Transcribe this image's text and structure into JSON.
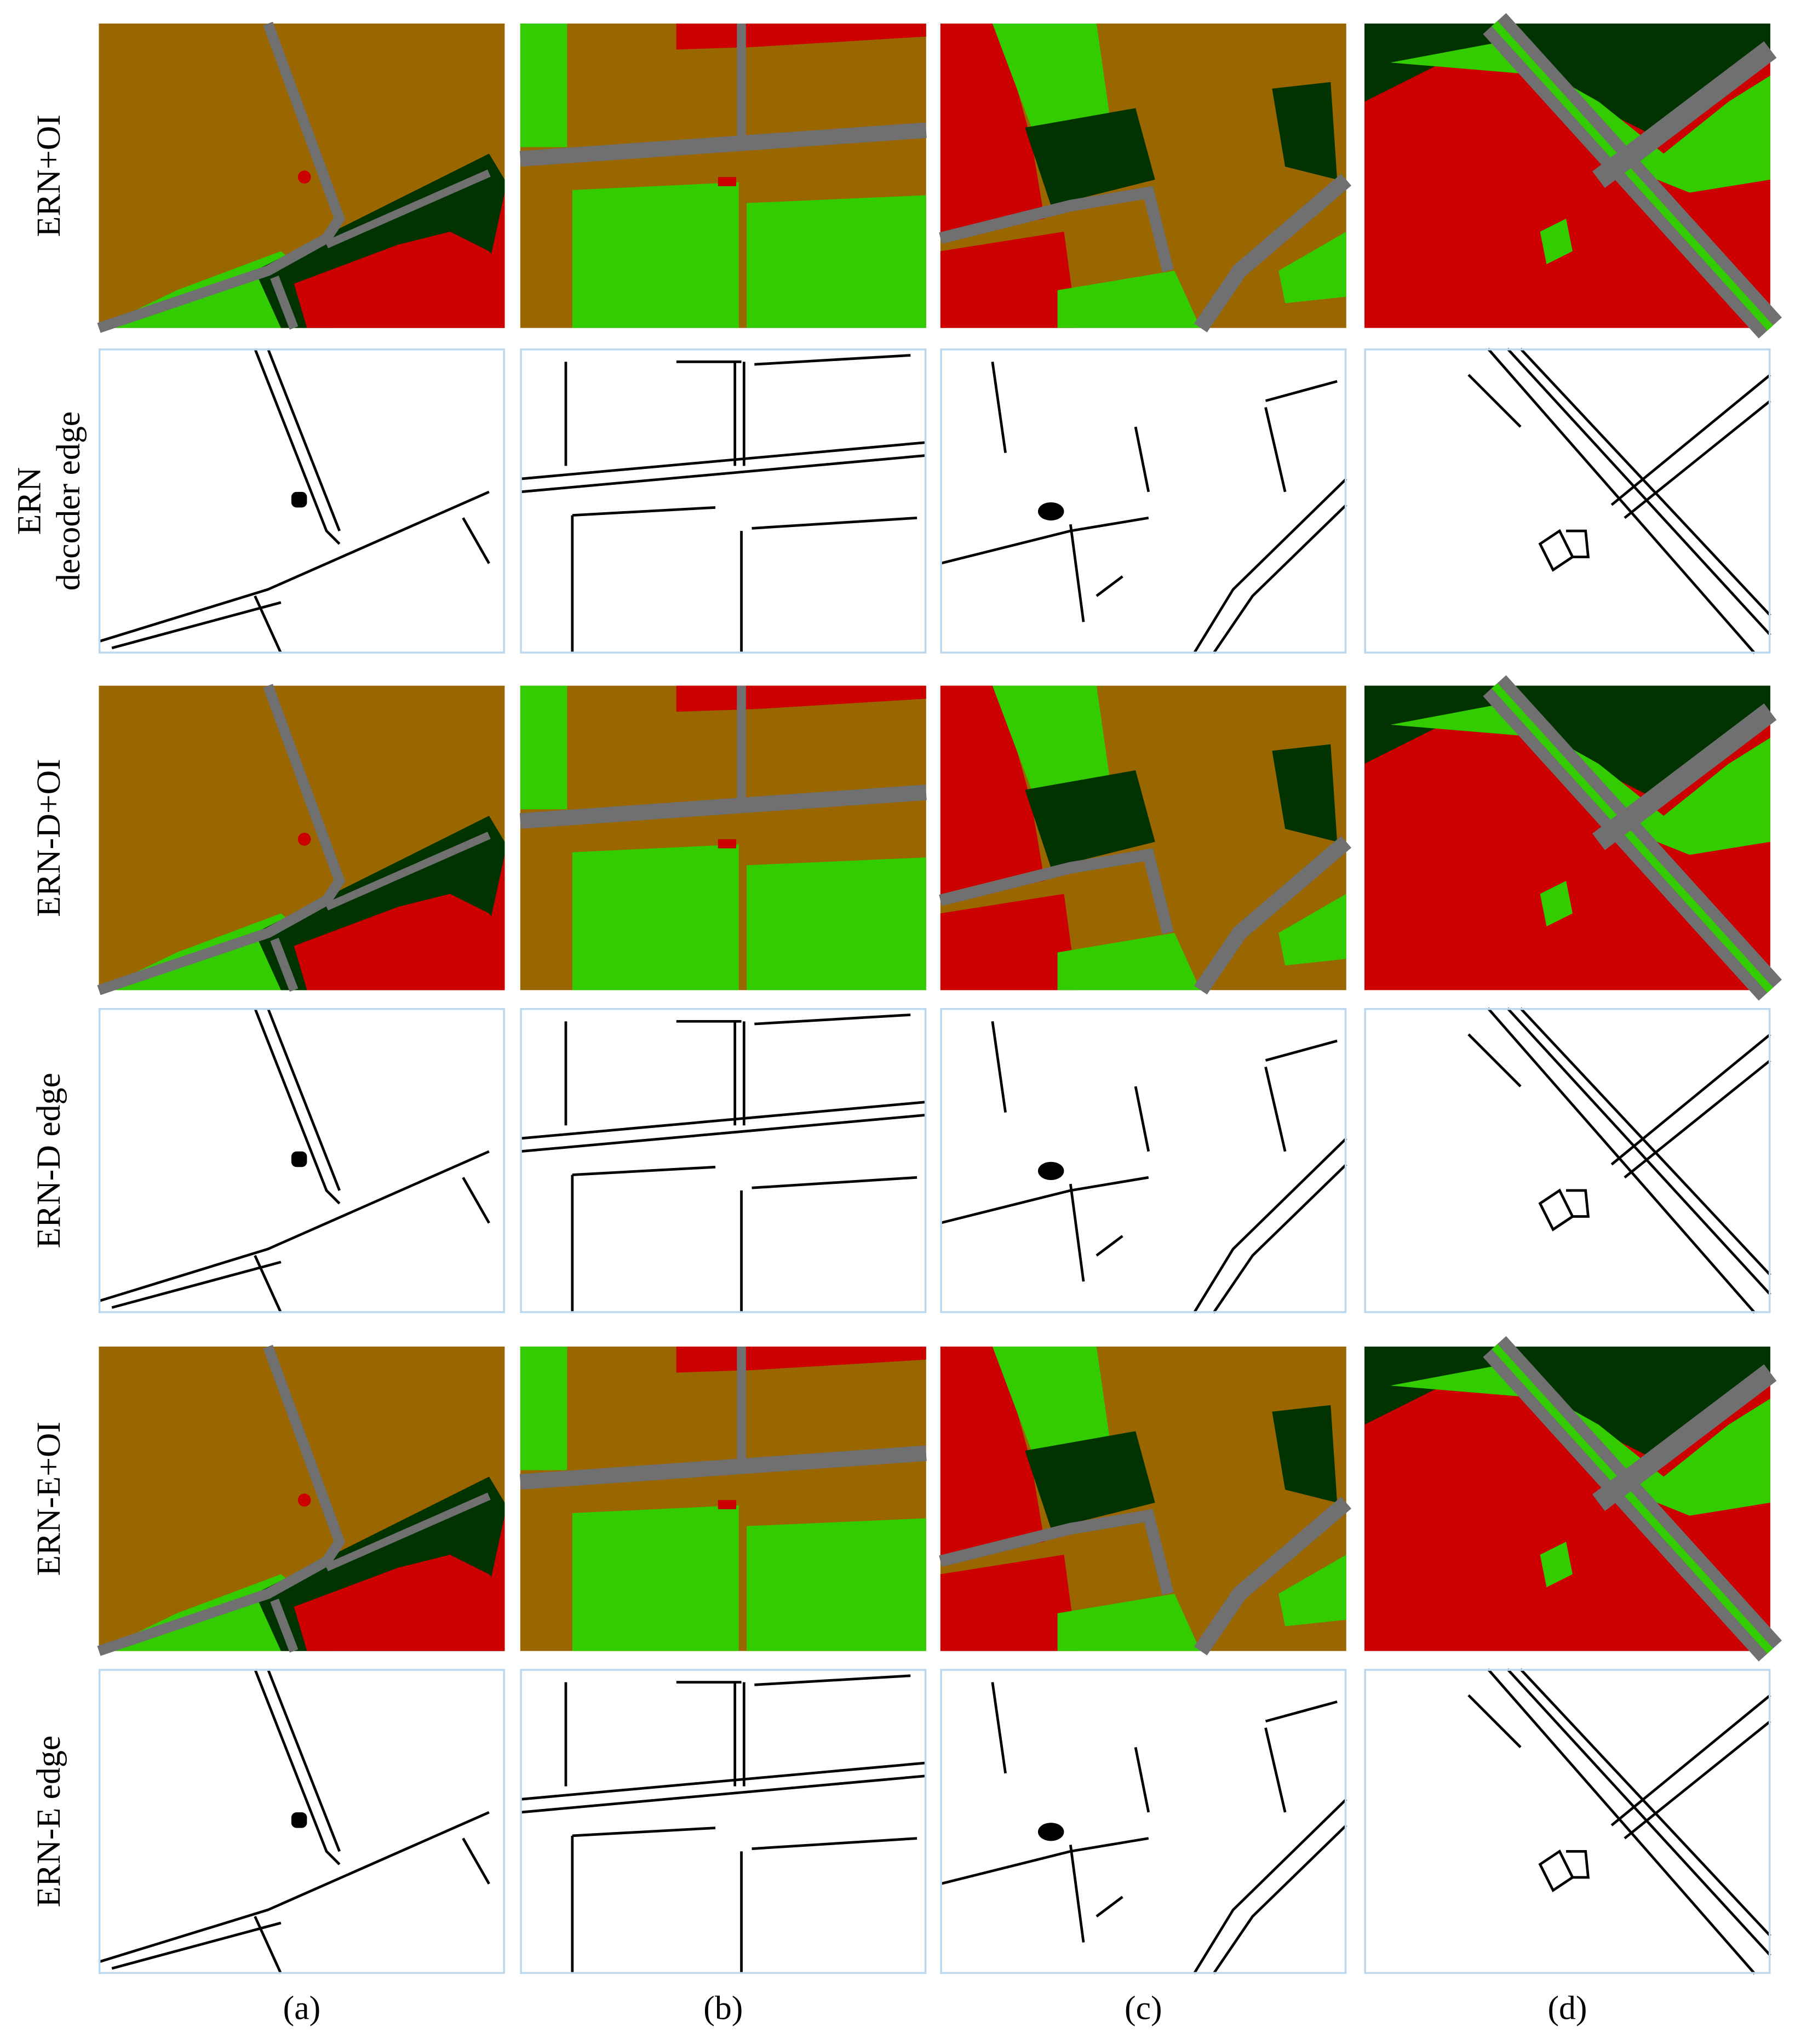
{
  "rows": [
    {
      "label_lines": [
        "ERN+OI"
      ]
    },
    {
      "label_lines": [
        "ERN",
        "decoder edge"
      ]
    },
    {
      "label_lines": [
        "ERN-D+OI"
      ]
    },
    {
      "label_lines": [
        "ERN-D edge"
      ]
    },
    {
      "label_lines": [
        "ERN-E+OI"
      ]
    },
    {
      "label_lines": [
        "ERN-E edge"
      ]
    }
  ],
  "column_labels": [
    "(a)",
    "(b)",
    "(c)",
    "(d)"
  ]
}
